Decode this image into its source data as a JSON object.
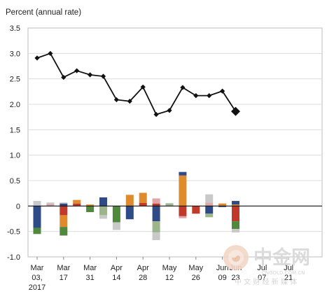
{
  "chart_data": {
    "type": "bar+line",
    "ylabel": "Percent (annual rate)",
    "ylim": [
      -1.0,
      3.5
    ],
    "yticks": [
      -1.0,
      -0.5,
      0,
      0.5,
      1.0,
      1.5,
      2.0,
      2.5,
      3.0,
      3.5
    ],
    "ytick_labels": [
      "-1.0",
      "-0.5",
      "0",
      "0.5",
      "1.0",
      "1.5",
      "2.0",
      "2.5",
      "3.0",
      "3.5"
    ],
    "xticks": [
      {
        "index": 0,
        "label": "Mar",
        "sub": "03,",
        "year": "2017"
      },
      {
        "index": 2,
        "label": "Mar",
        "sub": "17"
      },
      {
        "index": 4,
        "label": "Mar",
        "sub": "31"
      },
      {
        "index": 6,
        "label": "Apr",
        "sub": "14"
      },
      {
        "index": 8,
        "label": "Apr",
        "sub": "28"
      },
      {
        "index": 10,
        "label": "May",
        "sub": "12"
      },
      {
        "index": 12,
        "label": "May",
        "sub": "26"
      },
      {
        "index": 14,
        "label": "Jun",
        "sub": "09"
      },
      {
        "index": 15,
        "label": "Jun",
        "sub": "23"
      },
      {
        "index": 17,
        "label": "Jul",
        "sub": "07"
      },
      {
        "index": 19,
        "label": "Jul",
        "sub": "21"
      }
    ],
    "line": {
      "values": [
        2.91,
        3.0,
        2.53,
        2.66,
        2.58,
        2.55,
        2.09,
        2.06,
        2.34,
        1.8,
        1.88,
        2.33,
        2.17,
        2.17,
        2.26,
        1.86
      ],
      "last_point_highlighted": true
    },
    "bars": [
      {
        "segments": [
          {
            "color": "#2e4a87",
            "value": -0.43
          },
          {
            "color": "#4f8a3c",
            "value": -0.12
          },
          {
            "color": "#c9c9c9",
            "value": 0.1
          }
        ]
      },
      {
        "segments": [
          {
            "color": "#e0a7a7",
            "value": 0.04
          },
          {
            "color": "#c9c9c9",
            "value": 0.03
          }
        ]
      },
      {
        "segments": [
          {
            "color": "#c0392b",
            "value": -0.18
          },
          {
            "color": "#e08a2e",
            "value": -0.23
          },
          {
            "color": "#4f8a3c",
            "value": -0.17
          },
          {
            "color": "#2e4a87",
            "value": 0.05
          },
          {
            "color": "#c9c9c9",
            "value": 0.02
          }
        ]
      },
      {
        "segments": [
          {
            "color": "#c0392b",
            "value": 0.05
          },
          {
            "color": "#e08a2e",
            "value": 0.07
          }
        ]
      },
      {
        "segments": [
          {
            "color": "#4f8a3c",
            "value": -0.12
          },
          {
            "color": "#e08a2e",
            "value": 0.03
          }
        ]
      },
      {
        "segments": [
          {
            "color": "#2e4a87",
            "value": 0.17
          },
          {
            "color": "#9db58a",
            "value": -0.18
          },
          {
            "color": "#c9c9c9",
            "value": -0.07
          }
        ]
      },
      {
        "segments": [
          {
            "color": "#4f8a3c",
            "value": -0.32
          },
          {
            "color": "#c9c9c9",
            "value": -0.15
          }
        ]
      },
      {
        "segments": [
          {
            "color": "#e08a2e",
            "value": 0.22
          },
          {
            "color": "#2e4a87",
            "value": -0.26
          }
        ]
      },
      {
        "segments": [
          {
            "color": "#c0392b",
            "value": 0.06
          },
          {
            "color": "#e08a2e",
            "value": 0.2
          }
        ]
      },
      {
        "segments": [
          {
            "color": "#c0392b",
            "value": 0.05
          },
          {
            "color": "#e0a7a7",
            "value": 0.1
          },
          {
            "color": "#2e4a87",
            "value": -0.3
          },
          {
            "color": "#9db58a",
            "value": -0.22
          },
          {
            "color": "#c9c9c9",
            "value": -0.15
          }
        ]
      },
      {
        "segments": [
          {
            "color": "#9db58a",
            "value": 0.05
          },
          {
            "color": "#c9c9c9",
            "value": 0.01
          }
        ]
      },
      {
        "segments": [
          {
            "color": "#e08a2e",
            "value": 0.6
          },
          {
            "color": "#2e4a87",
            "value": 0.07
          },
          {
            "color": "#c0392b",
            "value": -0.2
          },
          {
            "color": "#e0a7a7",
            "value": -0.04
          }
        ]
      },
      {
        "segments": [
          {
            "color": "#c0392b",
            "value": -0.15
          }
        ]
      },
      {
        "segments": [
          {
            "color": "#e0a7a7",
            "value": 0.07
          },
          {
            "color": "#c9c9c9",
            "value": 0.16
          },
          {
            "color": "#2e4a87",
            "value": -0.15
          },
          {
            "color": "#9db58a",
            "value": -0.07
          }
        ]
      },
      {
        "segments": [
          {
            "color": "#e08a2e",
            "value": 0.05
          },
          {
            "color": "#2e4a87",
            "value": -0.02
          }
        ]
      },
      {
        "segments": [
          {
            "color": "#c0392b",
            "value": -0.3
          },
          {
            "color": "#4f8a3c",
            "value": -0.15
          },
          {
            "color": "#c9c9c9",
            "value": -0.07
          },
          {
            "color": "#e08a2e",
            "value": 0.03
          },
          {
            "color": "#2e4a87",
            "value": 0.07
          }
        ]
      }
    ]
  },
  "watermark": {
    "text": "中金网",
    "url": "CNGOLD.COM.CN",
    "subtitle": "中 文 财 经 新 媒 体"
  }
}
